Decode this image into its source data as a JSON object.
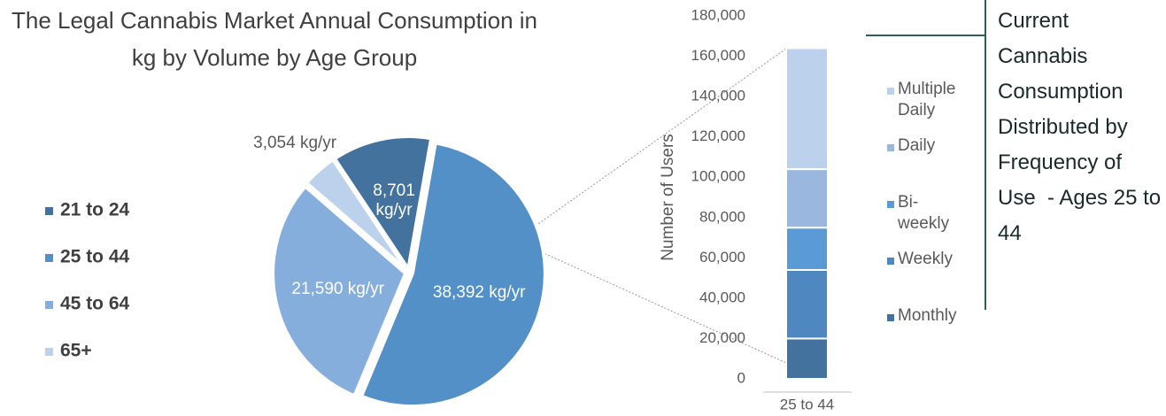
{
  "chart_data": [
    {
      "type": "pie",
      "title": "The Legal Cannabis Market Annual Consumption in kg by Volume by Age Group",
      "categories": [
        "21 to 24",
        "25 to 44",
        "45 to 64",
        "65+"
      ],
      "values": [
        8701,
        38392,
        21590,
        3054
      ],
      "value_labels": [
        "8,701 kg/yr",
        "38,392 kg/yr",
        "21,590 kg/yr",
        "3,054 kg/yr"
      ],
      "colors": [
        "#44729f",
        "#5490c8",
        "#86aedc",
        "#bcd1ec"
      ],
      "legend": "left"
    },
    {
      "type": "bar",
      "stacked": true,
      "categories": [
        "25 to 44"
      ],
      "ylabel": "Number of Users",
      "ylim": [
        0,
        180000
      ],
      "yticks": [
        0,
        {
          "value": 20000,
          "label": "20,000"
        },
        {
          "value": 40000,
          "label": "40,000"
        },
        {
          "value": 60000,
          "label": "60,000"
        },
        {
          "value": 80000,
          "label": "80,000"
        },
        {
          "value": 100000,
          "label": "100,000"
        },
        {
          "value": 120000,
          "label": "120,000"
        },
        {
          "value": 140000,
          "label": "140,000"
        },
        {
          "value": 160000,
          "label": "160,000"
        },
        {
          "value": 180000,
          "label": "180,000"
        }
      ],
      "series": [
        {
          "name": "Monthly",
          "color": "#44729f",
          "values": [
            20000
          ]
        },
        {
          "name": "Weekly",
          "color": "#4f88c0",
          "values": [
            34000
          ]
        },
        {
          "name": "Bi-weekly",
          "color": "#5b9bd5",
          "values": [
            21000
          ]
        },
        {
          "name": "Daily",
          "color": "#9ab8df",
          "values": [
            29000
          ]
        },
        {
          "name": "Multiple Daily",
          "color": "#bcd1ec",
          "values": [
            60000
          ]
        }
      ],
      "legend": "right",
      "annotation": "Current Cannabis Consumption Distributed by Frequency of Use  - Ages 25 to 44"
    }
  ]
}
